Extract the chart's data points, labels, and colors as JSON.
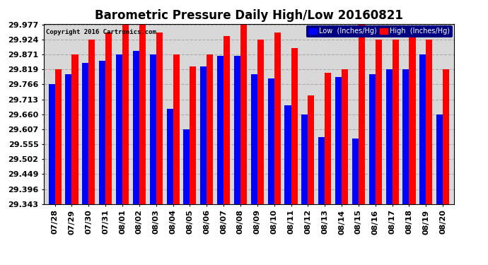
{
  "title": "Barometric Pressure Daily High/Low 20160821",
  "copyright": "Copyright 2016 Cartronics.com",
  "legend_low": "Low  (Inches/Hg)",
  "legend_high": "High  (Inches/Hg)",
  "dates": [
    "07/28",
    "07/29",
    "07/30",
    "07/31",
    "08/01",
    "08/02",
    "08/03",
    "08/04",
    "08/05",
    "08/06",
    "08/07",
    "08/08",
    "08/09",
    "08/10",
    "08/11",
    "08/12",
    "08/13",
    "08/14",
    "08/15",
    "08/16",
    "08/17",
    "08/18",
    "08/19",
    "08/20"
  ],
  "low": [
    29.766,
    29.803,
    29.843,
    29.849,
    29.871,
    29.884,
    29.871,
    29.68,
    29.607,
    29.83,
    29.868,
    29.868,
    29.803,
    29.788,
    29.693,
    29.66,
    29.58,
    29.793,
    29.575,
    29.803,
    29.819,
    29.819,
    29.871,
    29.66
  ],
  "high": [
    29.819,
    29.871,
    29.924,
    29.95,
    29.977,
    29.977,
    29.95,
    29.871,
    29.83,
    29.871,
    29.936,
    29.977,
    29.924,
    29.95,
    29.895,
    29.727,
    29.806,
    29.819,
    29.977,
    29.924,
    29.924,
    29.95,
    29.924,
    29.819
  ],
  "ymin": 29.343,
  "ymax": 29.977,
  "yticks": [
    29.977,
    29.924,
    29.871,
    29.819,
    29.766,
    29.713,
    29.66,
    29.607,
    29.555,
    29.502,
    29.449,
    29.396,
    29.343
  ],
  "low_color": "#0000ff",
  "high_color": "#ff0000",
  "bg_color": "#ffffff",
  "plot_bg_color": "#d8d8d8",
  "grid_color": "#aaaaaa",
  "title_fontsize": 12,
  "tick_fontsize": 8,
  "bar_width": 0.38
}
